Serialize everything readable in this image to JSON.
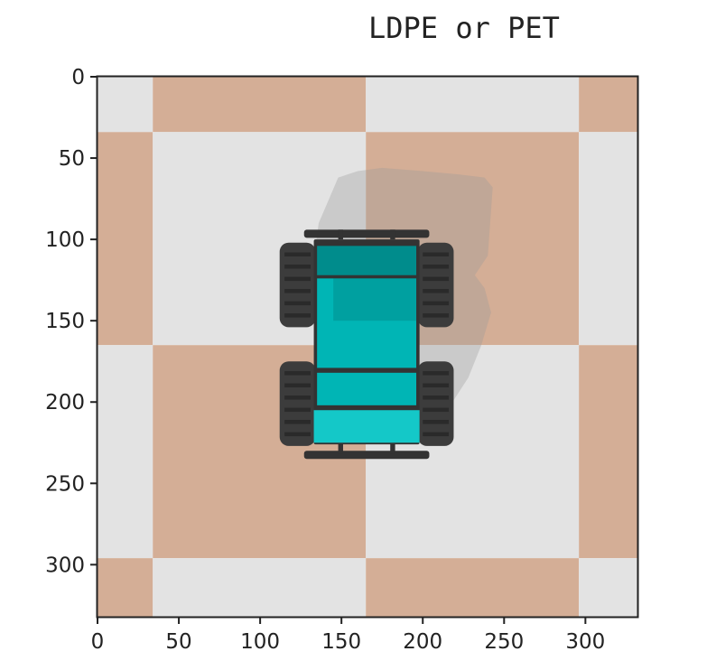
{
  "title": "LDPE or PET",
  "image": {
    "x_range": [
      0,
      332
    ],
    "y_range": [
      0,
      332
    ],
    "x_ticks": [
      0,
      50,
      100,
      150,
      200,
      250,
      300
    ],
    "y_ticks": [
      0,
      50,
      100,
      150,
      200,
      250,
      300
    ],
    "checker_split_x": [
      0,
      34,
      165,
      296,
      332
    ],
    "checker_split_y": [
      0,
      34,
      165,
      296,
      332
    ],
    "colors": {
      "tile_light": "#e3e3e3",
      "tile_tan": "#d4ae96",
      "shadow": "#9a9a9a",
      "tire": "#3c3c3c",
      "tire_tread": "#2a2a2a",
      "chassis_teal": "#00b5b5",
      "chassis_dark": "#008c8c",
      "bumper": "#333333"
    }
  }
}
